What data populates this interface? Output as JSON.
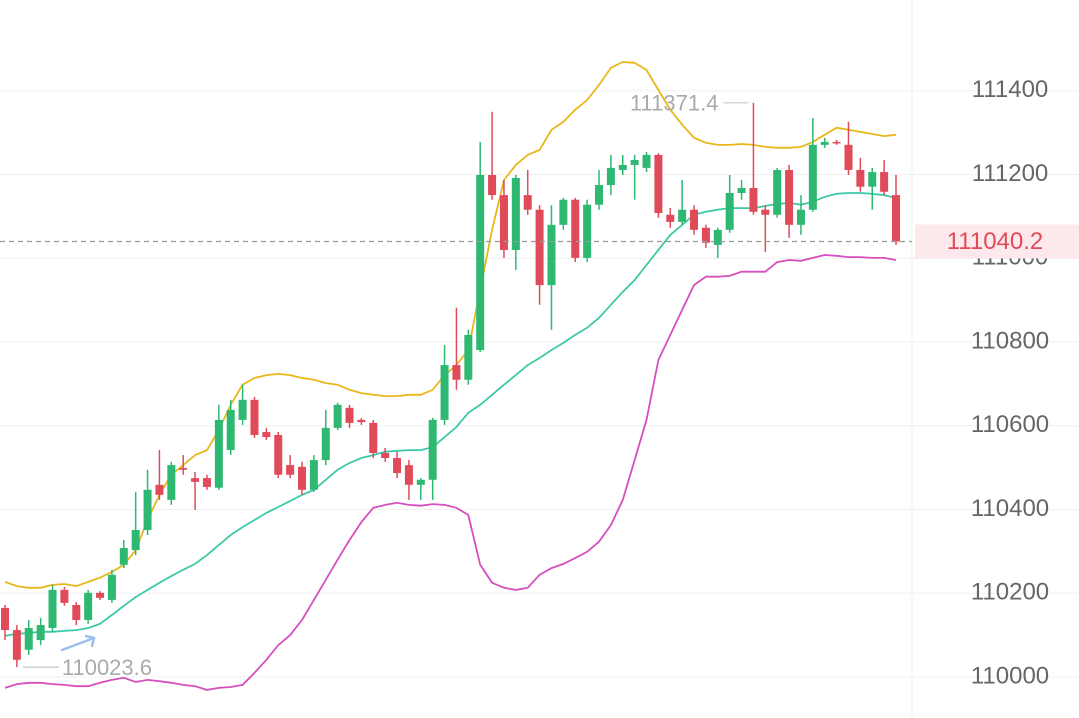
{
  "chart_data": {
    "type": "candlestick",
    "up_color": "#2eb872",
    "down_color": "#e04b5a",
    "candles": {
      "open": [
        110165,
        110112,
        110065,
        110088,
        110117,
        110208,
        110172,
        110136,
        110201,
        110184,
        110268,
        110303,
        110351,
        110459,
        110423,
        110499,
        110475,
        110475,
        110452,
        110542,
        110614,
        110662,
        110585,
        110578,
        110506,
        110502,
        110447,
        110518,
        110595,
        110643,
        110614,
        110607,
        110535,
        110523,
        110506,
        110459,
        110471,
        110614,
        110745,
        110710,
        110781,
        111199,
        111151,
        111020,
        111151,
        111116,
        110936,
        111080,
        111140,
        111001,
        111128,
        111175,
        111211,
        111223,
        111216,
        111247,
        111104,
        111087,
        111116,
        111073,
        111032,
        111068,
        111156,
        111168,
        111116,
        111104,
        111211,
        111080,
        111116,
        111271,
        111278,
        111271,
        111211,
        111171,
        111206,
        111151
      ],
      "high": [
        110172,
        110124,
        110136,
        110141,
        110220,
        110215,
        110179,
        110208,
        110205,
        110256,
        110327,
        110442,
        110495,
        110542,
        110514,
        110530,
        110490,
        110483,
        110650,
        110662,
        110698,
        110669,
        110595,
        110585,
        110530,
        110514,
        110530,
        110638,
        110655,
        110650,
        110619,
        110614,
        110547,
        110538,
        110518,
        110475,
        110619,
        110793,
        110882,
        110829,
        111278,
        111350,
        111187,
        111199,
        111211,
        111127,
        111127,
        111144,
        111144,
        111140,
        111211,
        111247,
        111247,
        111247,
        111254,
        111251,
        111120,
        111187,
        111127,
        111080,
        111073,
        111199,
        111187,
        111371.4,
        111127,
        111216,
        111223,
        111151,
        111335,
        111288,
        111283,
        111326,
        111240,
        111216,
        111235,
        111199
      ],
      "low": [
        110088,
        110023.6,
        110053,
        110076,
        110108,
        110170,
        110124,
        110127,
        110184,
        110177,
        110260,
        110291,
        110339,
        110423,
        110411,
        110483,
        110399,
        110447,
        110447,
        110530,
        110602,
        110571,
        110566,
        110475,
        110475,
        110435,
        110442,
        110506,
        110590,
        110595,
        110602,
        110523,
        110514,
        110475,
        110423,
        110423,
        110423,
        110602,
        110686,
        110698,
        110776,
        111140,
        111001,
        110972,
        111104,
        110889,
        110829,
        111068,
        110991,
        110991,
        111116,
        111151,
        111199,
        111140,
        111206,
        111097,
        111073,
        111080,
        111056,
        111025,
        111001,
        111061,
        111140,
        111104,
        111015,
        111097,
        111049,
        111056,
        111111,
        111264,
        111271,
        111199,
        111159,
        111116,
        111151,
        111032
      ],
      "close": [
        110112,
        110041,
        110117,
        110124,
        110208,
        110177,
        110136,
        110201,
        110189,
        110244,
        110308,
        110351,
        110447,
        110435,
        110506,
        110495,
        110466,
        110454,
        110614,
        110638,
        110662,
        110578,
        110573,
        110483,
        110483,
        110447,
        110518,
        110595,
        110650,
        110607,
        110609,
        110535,
        110523,
        110487,
        110459,
        110471,
        110614,
        110745,
        110710,
        110817,
        111199,
        111151,
        111020,
        111192,
        111116,
        110936,
        111080,
        111140,
        111001,
        111128,
        111175,
        111216,
        111223,
        111235,
        111247,
        111108,
        111087,
        111116,
        111068,
        111037,
        111068,
        111156,
        111168,
        111111,
        111104,
        111211,
        111080,
        111116,
        111271,
        111278,
        111276,
        111211,
        111171,
        111206,
        111159,
        111040.2
      ]
    },
    "bands": [
      {
        "color": "#e9b71c",
        "values": [
          110227,
          110217,
          110213,
          110213,
          110220,
          110222,
          110217,
          110227,
          110237,
          110251,
          110268,
          110303,
          110375,
          110435,
          110483,
          110506,
          110530,
          110542,
          110590,
          110650,
          110698,
          110714,
          110721,
          110724,
          110721,
          110714,
          110710,
          110702,
          110698,
          110686,
          110678,
          110674,
          110671,
          110671,
          110674,
          110674,
          110686,
          110721,
          110745,
          110781,
          110925,
          111068,
          111187,
          111223,
          111247,
          111259,
          111307,
          111326,
          111355,
          111378,
          111414,
          111455,
          111469,
          111467,
          111450,
          111402,
          111355,
          111319,
          111288,
          111276,
          111271,
          111271,
          111273,
          111271,
          111266,
          111264,
          111264,
          111266,
          111278,
          111295,
          111312,
          111307,
          111302,
          111297,
          111292,
          111295
        ]
      },
      {
        "color": "#3cc9a8",
        "values": [
          110098,
          110103,
          110105,
          110108,
          110108,
          110110,
          110112,
          110117,
          110127,
          110148,
          110170,
          110191,
          110208,
          110225,
          110241,
          110256,
          110270,
          110291,
          110315,
          110339,
          110358,
          110375,
          110392,
          110406,
          110420,
          110435,
          110447,
          110471,
          110495,
          110511,
          110523,
          110530,
          110538,
          110540,
          110542,
          110542,
          110549,
          110573,
          110597,
          110631,
          110650,
          110674,
          110698,
          110721,
          110745,
          110762,
          110781,
          110798,
          110817,
          110834,
          110858,
          110889,
          110920,
          110948,
          110984,
          111020,
          111056,
          111080,
          111104,
          111111,
          111116,
          111120,
          111120,
          111120,
          111125,
          111130,
          111132,
          111128,
          111135,
          111147,
          111154,
          111156,
          111156,
          111154,
          111151,
          111144
        ]
      },
      {
        "color": "#d64fbe",
        "values": [
          109974,
          109983,
          109986,
          109986,
          109983,
          109981,
          109978,
          109978,
          109986,
          109993,
          109998,
          109988,
          109993,
          109990,
          109986,
          109981,
          109978,
          109969,
          109974,
          109976,
          109981,
          110010,
          110041,
          110076,
          110100,
          110136,
          110184,
          110232,
          110280,
          110327,
          110370,
          110404,
          110411,
          110416,
          110411,
          110409,
          110413,
          110411,
          110404,
          110387,
          110268,
          110225,
          110213,
          110208,
          110213,
          110244,
          110260,
          110270,
          110284,
          110299,
          110323,
          110363,
          110423,
          110518,
          110614,
          110757,
          110817,
          110877,
          110936,
          110956,
          110956,
          110958,
          110968,
          110968,
          110968,
          110991,
          110996,
          110994,
          111001,
          111008,
          111006,
          111003,
          111003,
          111001,
          111001,
          110996
        ]
      }
    ],
    "max_label": 111371.4,
    "min_label": 110023.6,
    "last_price": 111040.2,
    "ylim": [
      109902,
      111617
    ],
    "yticks": [
      110000,
      110200,
      110400,
      110600,
      110800,
      111000,
      111200,
      111400
    ],
    "grid": true
  }
}
